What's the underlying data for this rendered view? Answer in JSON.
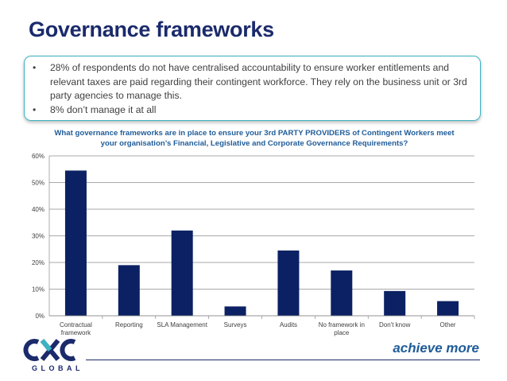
{
  "slide": {
    "title": "Governance frameworks",
    "bullets": [
      "28% of respondents do not have centralised accountability to ensure worker entitlements and relevant taxes are paid regarding their contingent workforce.  They rely on the business unit or 3rd party agencies to manage this.",
      "8% don’t manage it at all"
    ],
    "tagline": "achieve more",
    "logo_text": "GLOBAL"
  },
  "colors": {
    "bar": "#0b2163",
    "title": "#1b2a6b",
    "question": "#1f5c99",
    "accent": "#3bb3c3"
  },
  "chart_data": {
    "type": "bar",
    "title": "What governance frameworks are in place to ensure your 3rd PARTY PROVIDERS of Contingent Workers meet your organisation’s Financial, Legislative and Corporate Governance Requirements?",
    "categories": [
      [
        "Contractual",
        "framework"
      ],
      [
        "Reporting"
      ],
      [
        "SLA Management"
      ],
      [
        "Surveys"
      ],
      [
        "Audits"
      ],
      [
        "No framework in",
        "place"
      ],
      [
        "Don't know"
      ],
      [
        "Other"
      ]
    ],
    "values": [
      54.5,
      19,
      32,
      3.5,
      24.5,
      17,
      9.3,
      5.5
    ],
    "ylim": [
      0,
      60
    ],
    "yticks": [
      0,
      10,
      20,
      30,
      40,
      50,
      60
    ],
    "ytick_labels": [
      "0%",
      "10%",
      "20%",
      "30%",
      "40%",
      "50%",
      "60%"
    ],
    "xlabel": "",
    "ylabel": "",
    "grid": true
  }
}
